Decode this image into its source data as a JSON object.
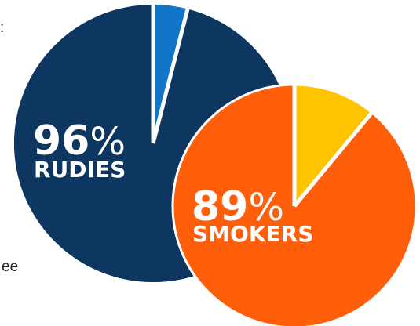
{
  "chart_data": [
    {
      "type": "pie",
      "name": "rudies",
      "value_percent": 96,
      "label": "RUDIES",
      "percent_text": "96",
      "percent_sign": "%",
      "slices": [
        {
          "value": 96,
          "color": "#0d3660"
        },
        {
          "value": 4,
          "color": "#1176c9"
        }
      ]
    },
    {
      "type": "pie",
      "name": "smokers",
      "value_percent": 89,
      "label": "SMOKERS",
      "percent_text": "89",
      "percent_sign": "%",
      "slices": [
        {
          "value": 89,
          "color": "#ff5f0a"
        },
        {
          "value": 11,
          "color": "#ffc400"
        }
      ]
    }
  ],
  "edge_text": {
    "top_fragment": ":",
    "bottom_fragment": "ee"
  },
  "colors": {
    "separator": "#ffffff"
  }
}
